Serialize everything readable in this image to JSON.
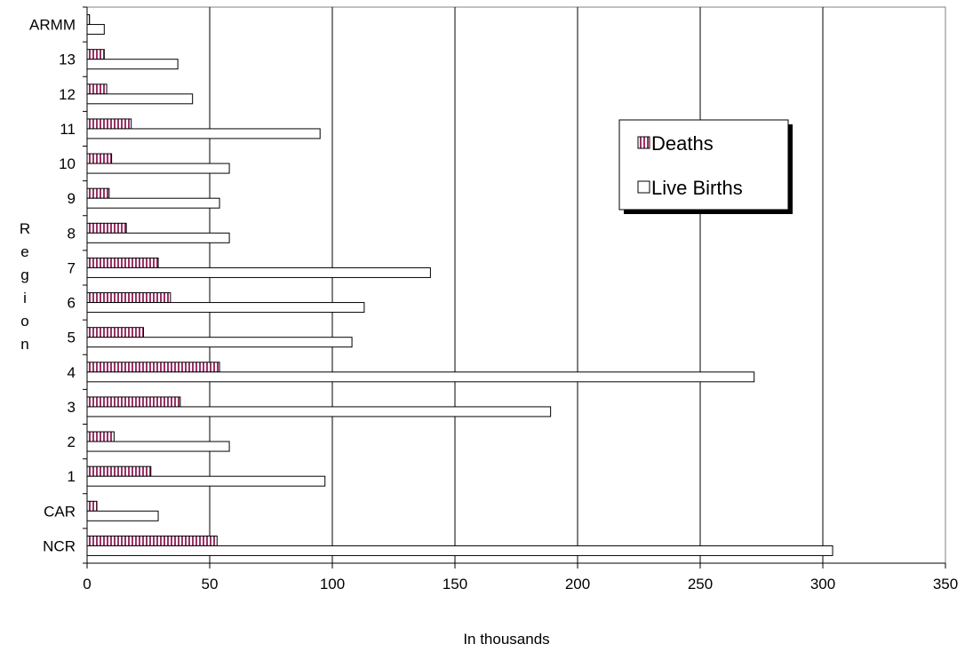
{
  "chart_data": {
    "type": "bar",
    "orientation": "horizontal",
    "categories": [
      "NCR",
      "CAR",
      "1",
      "2",
      "3",
      "4",
      "5",
      "6",
      "7",
      "8",
      "9",
      "10",
      "11",
      "12",
      "13",
      "ARMM"
    ],
    "series": [
      {
        "name": "Deaths",
        "color": "#993366",
        "pattern": "vertical-stripes",
        "values": [
          53,
          4,
          26,
          11,
          38,
          54,
          23,
          34,
          29,
          16,
          9,
          10,
          18,
          8,
          7,
          1
        ]
      },
      {
        "name": "Live Births",
        "color": "#ffffff",
        "values": [
          304,
          29,
          97,
          58,
          189,
          272,
          108,
          113,
          140,
          58,
          54,
          58,
          95,
          43,
          37,
          7
        ]
      }
    ],
    "xlabel": "In thousands",
    "ylabel": "Region",
    "xlim": [
      0,
      350
    ],
    "xticks": [
      "0",
      "50",
      "100",
      "150",
      "200",
      "250",
      "300",
      "350"
    ],
    "grid": "vertical",
    "legend_position": "right"
  }
}
